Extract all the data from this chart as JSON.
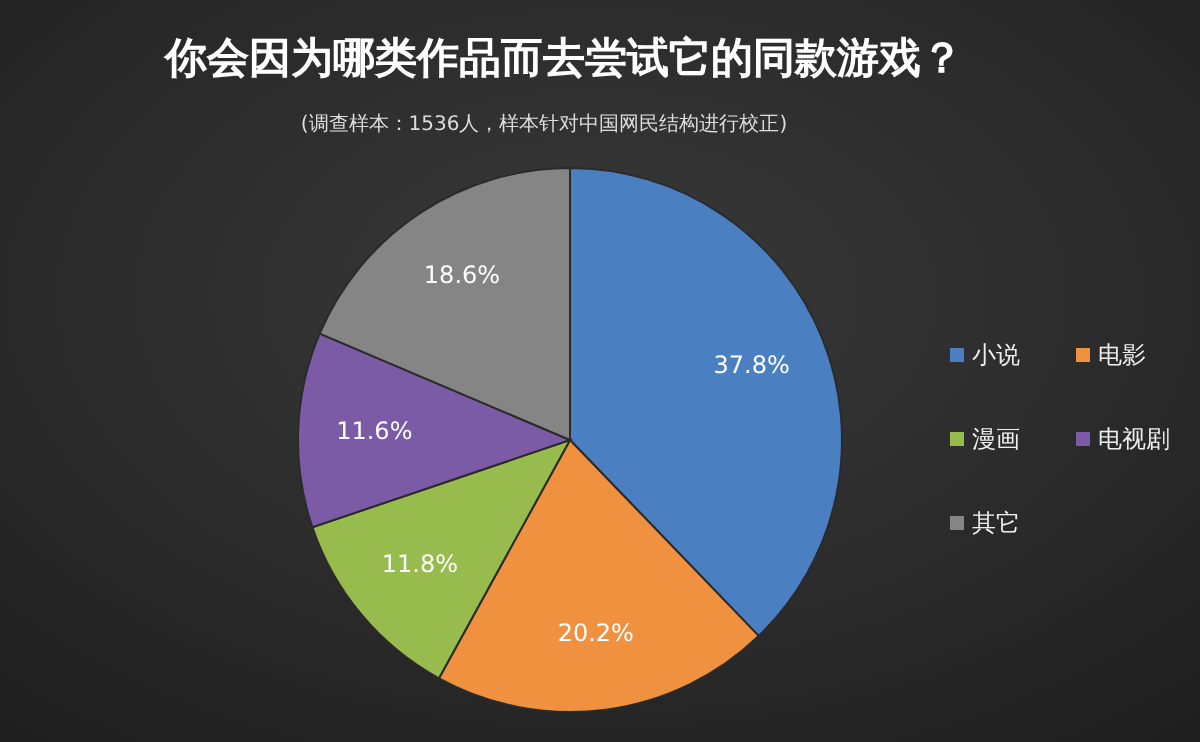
{
  "chart_data": {
    "type": "pie",
    "title": "你会因为哪类作品而去尝试它的同款游戏？",
    "subtitle": "(调查样本：1536人，样本针对中国网民结构进行校正)",
    "categories": [
      "小说",
      "电影",
      "漫画",
      "电视剧",
      "其它"
    ],
    "values": [
      37.8,
      20.2,
      11.8,
      11.6,
      18.6
    ],
    "colors": [
      "#4a7fc1",
      "#f0913f",
      "#97bb4c",
      "#7b5aa6",
      "#858585"
    ],
    "value_labels": [
      "37.8%",
      "20.2%",
      "11.8%",
      "11.6%",
      "18.6%"
    ],
    "legend": "right"
  }
}
